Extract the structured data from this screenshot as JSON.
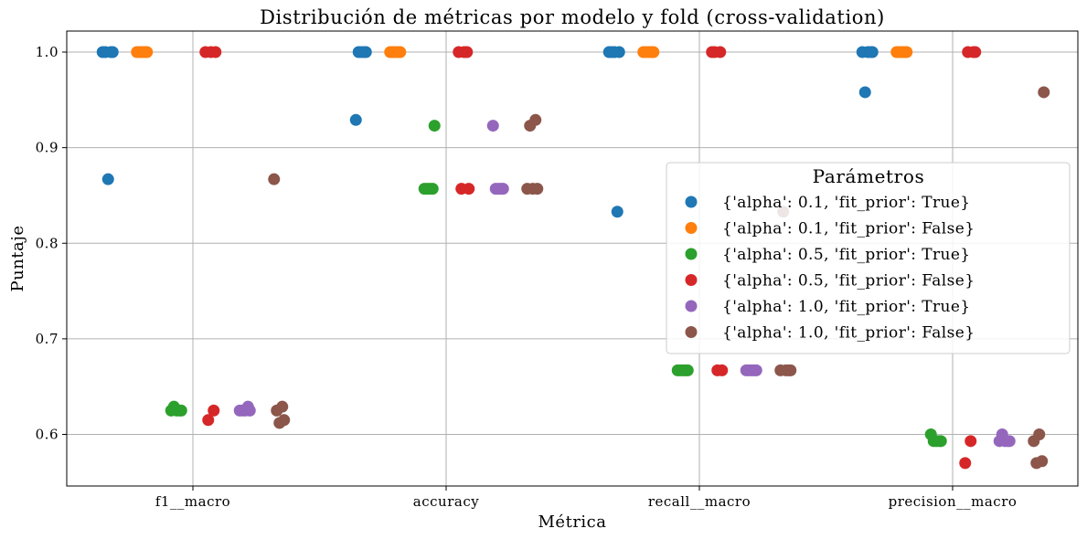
{
  "chart_data": {
    "type": "scatter",
    "title": "Distribución de métricas por modelo y fold (cross-validation)",
    "xlabel": "Métrica",
    "ylabel": "Puntaje",
    "categories": [
      "f1__macro",
      "accuracy",
      "recall__macro",
      "precision__macro"
    ],
    "ylim": [
      0.546,
      1.022
    ],
    "yticks": [
      "0.6",
      "0.7",
      "0.8",
      "0.9",
      "1.0"
    ],
    "grid": true,
    "legend": {
      "title": "Parámetros",
      "placement": "center-right"
    },
    "series": [
      {
        "name": "{'alpha': 0.1, 'fit_prior': True}",
        "color": "#1f77b4",
        "values": [
          [
            1.0,
            1.0,
            1.0,
            1.0,
            0.867
          ],
          [
            1.0,
            1.0,
            1.0,
            1.0,
            0.929
          ],
          [
            1.0,
            1.0,
            1.0,
            1.0,
            0.833
          ],
          [
            1.0,
            1.0,
            1.0,
            1.0,
            0.958
          ]
        ]
      },
      {
        "name": "{'alpha': 0.1, 'fit_prior': False}",
        "color": "#ff7f0e",
        "values": [
          [
            1.0,
            1.0,
            1.0,
            1.0,
            1.0
          ],
          [
            1.0,
            1.0,
            1.0,
            1.0,
            1.0
          ],
          [
            1.0,
            1.0,
            1.0,
            1.0,
            1.0
          ],
          [
            1.0,
            1.0,
            1.0,
            1.0,
            1.0
          ]
        ]
      },
      {
        "name": "{'alpha': 0.5, 'fit_prior': True}",
        "color": "#2ca02c",
        "values": [
          [
            0.629,
            0.625,
            0.625,
            0.625,
            0.625
          ],
          [
            0.923,
            0.857,
            0.857,
            0.857,
            0.857
          ],
          [
            0.667,
            0.667,
            0.667,
            0.667,
            0.667
          ],
          [
            0.6,
            0.593,
            0.593,
            0.593,
            0.593
          ]
        ]
      },
      {
        "name": "{'alpha': 0.5, 'fit_prior': False}",
        "color": "#d62728",
        "values": [
          [
            1.0,
            1.0,
            1.0,
            0.625,
            0.615
          ],
          [
            1.0,
            1.0,
            1.0,
            0.857,
            0.857
          ],
          [
            1.0,
            1.0,
            1.0,
            0.667,
            0.667
          ],
          [
            1.0,
            1.0,
            1.0,
            0.593,
            0.57
          ]
        ]
      },
      {
        "name": "{'alpha': 1.0, 'fit_prior': True}",
        "color": "#9467bd",
        "values": [
          [
            0.625,
            0.625,
            0.629,
            0.625,
            0.625
          ],
          [
            0.923,
            0.857,
            0.857,
            0.857,
            0.857
          ],
          [
            0.667,
            0.667,
            0.667,
            0.667,
            0.667
          ],
          [
            0.6,
            0.593,
            0.593,
            0.593,
            0.593
          ]
        ]
      },
      {
        "name": "{'alpha': 1.0, 'fit_prior': False}",
        "color": "#8c564b",
        "values": [
          [
            0.867,
            0.629,
            0.625,
            0.615,
            0.612
          ],
          [
            0.929,
            0.923,
            0.857,
            0.857,
            0.857
          ],
          [
            0.833,
            0.667,
            0.667,
            0.667,
            0.667
          ],
          [
            0.958,
            0.6,
            0.593,
            0.572,
            0.57
          ]
        ]
      }
    ]
  }
}
